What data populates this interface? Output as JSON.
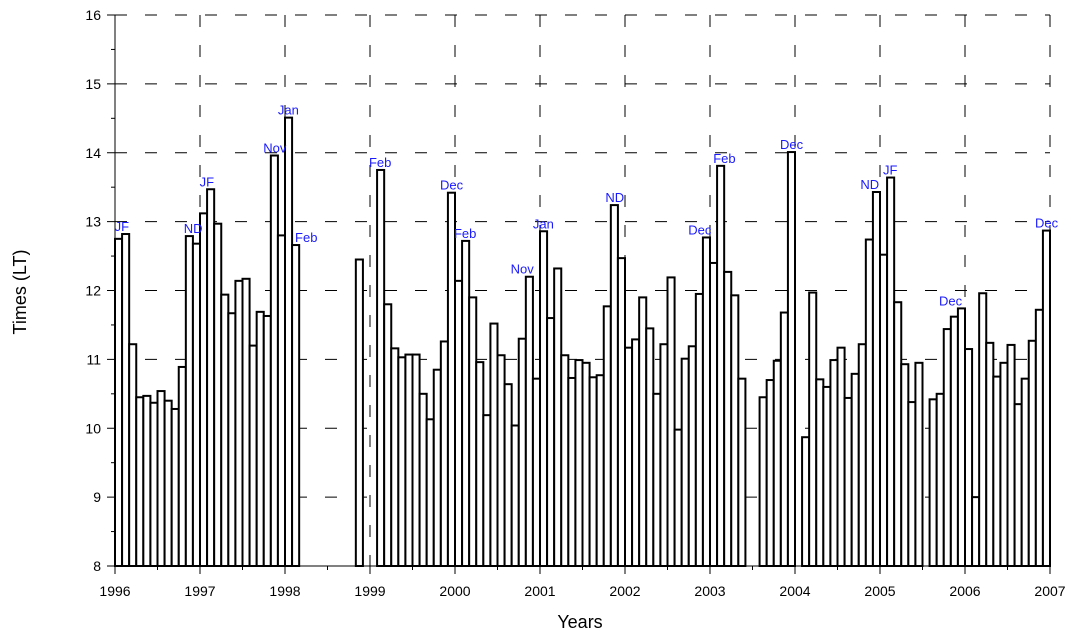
{
  "chart_data": {
    "type": "bar",
    "title": "",
    "xlabel": "Years",
    "ylabel": "Times (LT)",
    "xlim": [
      1996,
      2007
    ],
    "ylim": [
      8,
      16
    ],
    "x_ticks": [
      "1996",
      "1997",
      "1998",
      "1999",
      "2000",
      "2001",
      "2002",
      "2003",
      "2004",
      "2005",
      "2006",
      "2007"
    ],
    "y_ticks": [
      "8",
      "9",
      "10",
      "11",
      "12",
      "13",
      "14",
      "15",
      "16"
    ],
    "grid": "dashed",
    "months_per_year": 12,
    "series": [
      {
        "values": [
          12.75,
          12.82,
          11.22,
          10.45,
          10.47,
          10.37,
          10.54,
          10.4,
          10.28,
          10.89,
          12.79,
          12.68,
          13.12,
          13.47,
          12.97,
          11.94,
          11.67,
          12.14,
          12.17,
          11.2,
          11.69,
          11.63,
          13.96,
          12.8,
          14.51,
          12.66,
          null,
          null,
          null,
          null,
          null,
          null,
          null,
          null,
          12.45,
          null,
          null,
          13.75,
          11.8,
          11.16,
          11.03,
          11.07,
          11.07,
          10.5,
          10.13,
          10.85,
          11.26,
          13.42,
          12.14,
          12.72,
          11.9,
          10.96,
          10.19,
          11.52,
          11.06,
          10.64,
          10.04,
          11.3,
          12.2,
          10.72,
          12.86,
          11.6,
          12.32,
          11.06,
          10.73,
          10.99,
          10.95,
          10.74,
          10.77,
          11.77,
          13.24,
          12.47,
          11.17,
          11.29,
          11.9,
          11.45,
          10.5,
          11.22,
          12.19,
          9.98,
          11.01,
          11.19,
          11.95,
          12.77,
          12.4,
          13.81,
          12.27,
          11.93,
          10.72,
          null,
          null,
          10.45,
          10.7,
          10.98,
          11.68,
          14.01,
          null,
          9.87,
          11.97,
          10.71,
          10.6,
          10.99,
          11.17,
          10.44,
          10.79,
          11.22,
          12.74,
          13.43,
          12.52,
          13.64,
          11.83,
          10.93,
          10.38,
          10.95,
          null,
          10.42,
          10.5,
          11.44,
          11.62,
          11.74,
          11.15,
          9.0,
          11.96,
          11.24,
          10.75,
          10.95,
          11.21,
          10.35,
          10.72,
          11.27,
          11.72,
          12.87
        ]
      }
    ],
    "annotations": [
      {
        "text": "JF",
        "x": 1996.08,
        "y": 12.82
      },
      {
        "text": "ND",
        "x": 1996.92,
        "y": 12.79
      },
      {
        "text": "JF",
        "x": 1997.08,
        "y": 13.47
      },
      {
        "text": "Nov",
        "x": 1997.88,
        "y": 13.96
      },
      {
        "text": "Jan",
        "x": 1998.04,
        "y": 14.51
      },
      {
        "text": "Feb",
        "x": 1998.25,
        "y": 12.66
      },
      {
        "text": "Feb",
        "x": 1999.12,
        "y": 13.75
      },
      {
        "text": "Dec",
        "x": 1999.96,
        "y": 13.42
      },
      {
        "text": "Feb",
        "x": 2000.12,
        "y": 12.72
      },
      {
        "text": "Nov",
        "x": 2000.79,
        "y": 12.2
      },
      {
        "text": "Jan",
        "x": 2001.04,
        "y": 12.86
      },
      {
        "text": "ND",
        "x": 2001.88,
        "y": 13.24
      },
      {
        "text": "Dec",
        "x": 2002.88,
        "y": 12.77
      },
      {
        "text": "Feb",
        "x": 2003.17,
        "y": 13.81
      },
      {
        "text": "Dec",
        "x": 2003.96,
        "y": 14.01
      },
      {
        "text": "ND",
        "x": 2004.88,
        "y": 13.43
      },
      {
        "text": "JF",
        "x": 2005.12,
        "y": 13.64
      },
      {
        "text": "Dec",
        "x": 2005.83,
        "y": 11.74
      },
      {
        "text": "Dec",
        "x": 2006.96,
        "y": 12.87
      }
    ]
  }
}
